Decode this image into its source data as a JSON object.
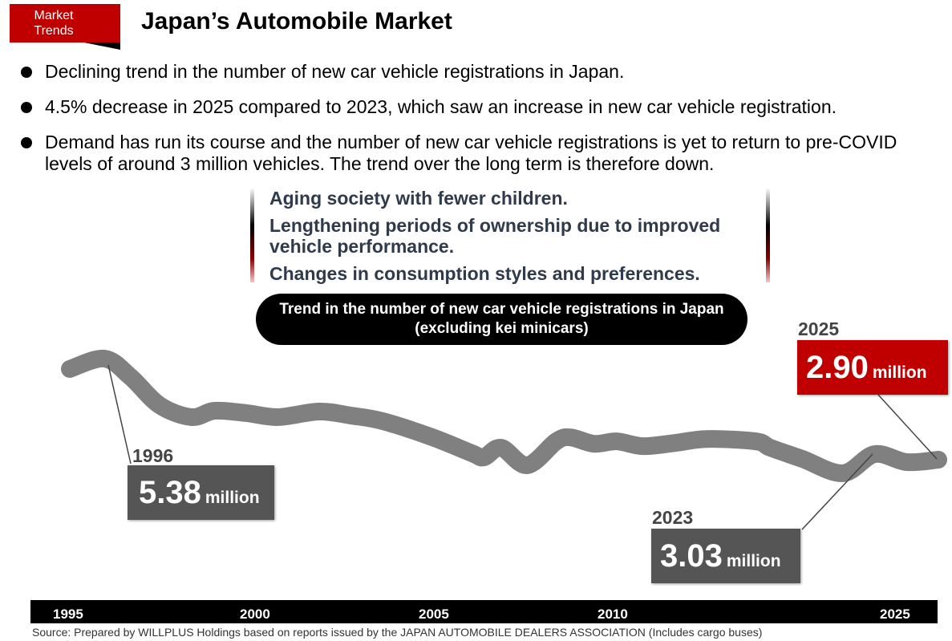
{
  "header": {
    "tag": [
      "Market",
      "Trends"
    ],
    "title": "Japan’s Automobile Market",
    "accent_color": "#c00000"
  },
  "bullets": [
    "Declining trend in the number of new car vehicle registrations in Japan.",
    "4.5% decrease in 2025 compared to 2023, which saw an increase in new car vehicle registration.",
    "Demand has run its course and the number of new car vehicle registrations is yet to return to pre-COVID levels of around 3 million vehicles. The trend over the long term is therefore down."
  ],
  "reasons": [
    "Aging society with fewer children.",
    "Lengthening periods of ownership due to improved vehicle performance.",
    "Changes in consumption styles and preferences."
  ],
  "chart_data": {
    "type": "line",
    "title": "Trend in the number of new car vehicle registrations in Japan (excluding kei minicars)",
    "xlabel": "",
    "ylabel": "",
    "unit": "million",
    "grid": false,
    "x_ticks": [
      "1995",
      "2000",
      "2005",
      "2010",
      "2025"
    ],
    "x": [
      1995,
      1996.2,
      1997.1,
      1998.1,
      1999.2,
      2000,
      2001.1,
      2002.2,
      2003.6,
      2004.7,
      2005.8,
      2007.5,
      2008.9,
      2009.3,
      2009.9,
      2010.8,
      2011.8,
      2012.3,
      2013.1,
      2013.9,
      2014.8,
      2015.9,
      2017,
      2018.7,
      2019.2,
      2020.3,
      2021.7,
      2022.8,
      2023.9,
      2025
    ],
    "values": [
      5.18,
      5.44,
      4.98,
      4.27,
      3.97,
      4.13,
      4.07,
      3.97,
      4.11,
      4.01,
      3.87,
      3.47,
      3.06,
      2.96,
      3.2,
      2.76,
      3.36,
      3.46,
      3.3,
      3.36,
      3.24,
      3.32,
      3.42,
      3.36,
      3.2,
      2.92,
      2.56,
      3.04,
      2.84,
      2.9
    ],
    "annotations": [
      {
        "year": "1996",
        "value": "5.38",
        "unit": "million"
      },
      {
        "year": "2023",
        "value": "3.03",
        "unit": "million"
      },
      {
        "year": "2025",
        "value": "2.90",
        "unit": "million"
      }
    ],
    "line_color": "#808080"
  },
  "source": "Source: Prepared by WILLPLUS Holdings based on reports issued by the JAPAN AUTOMOBILE DEALERS ASSOCIATION (Includes cargo buses)"
}
